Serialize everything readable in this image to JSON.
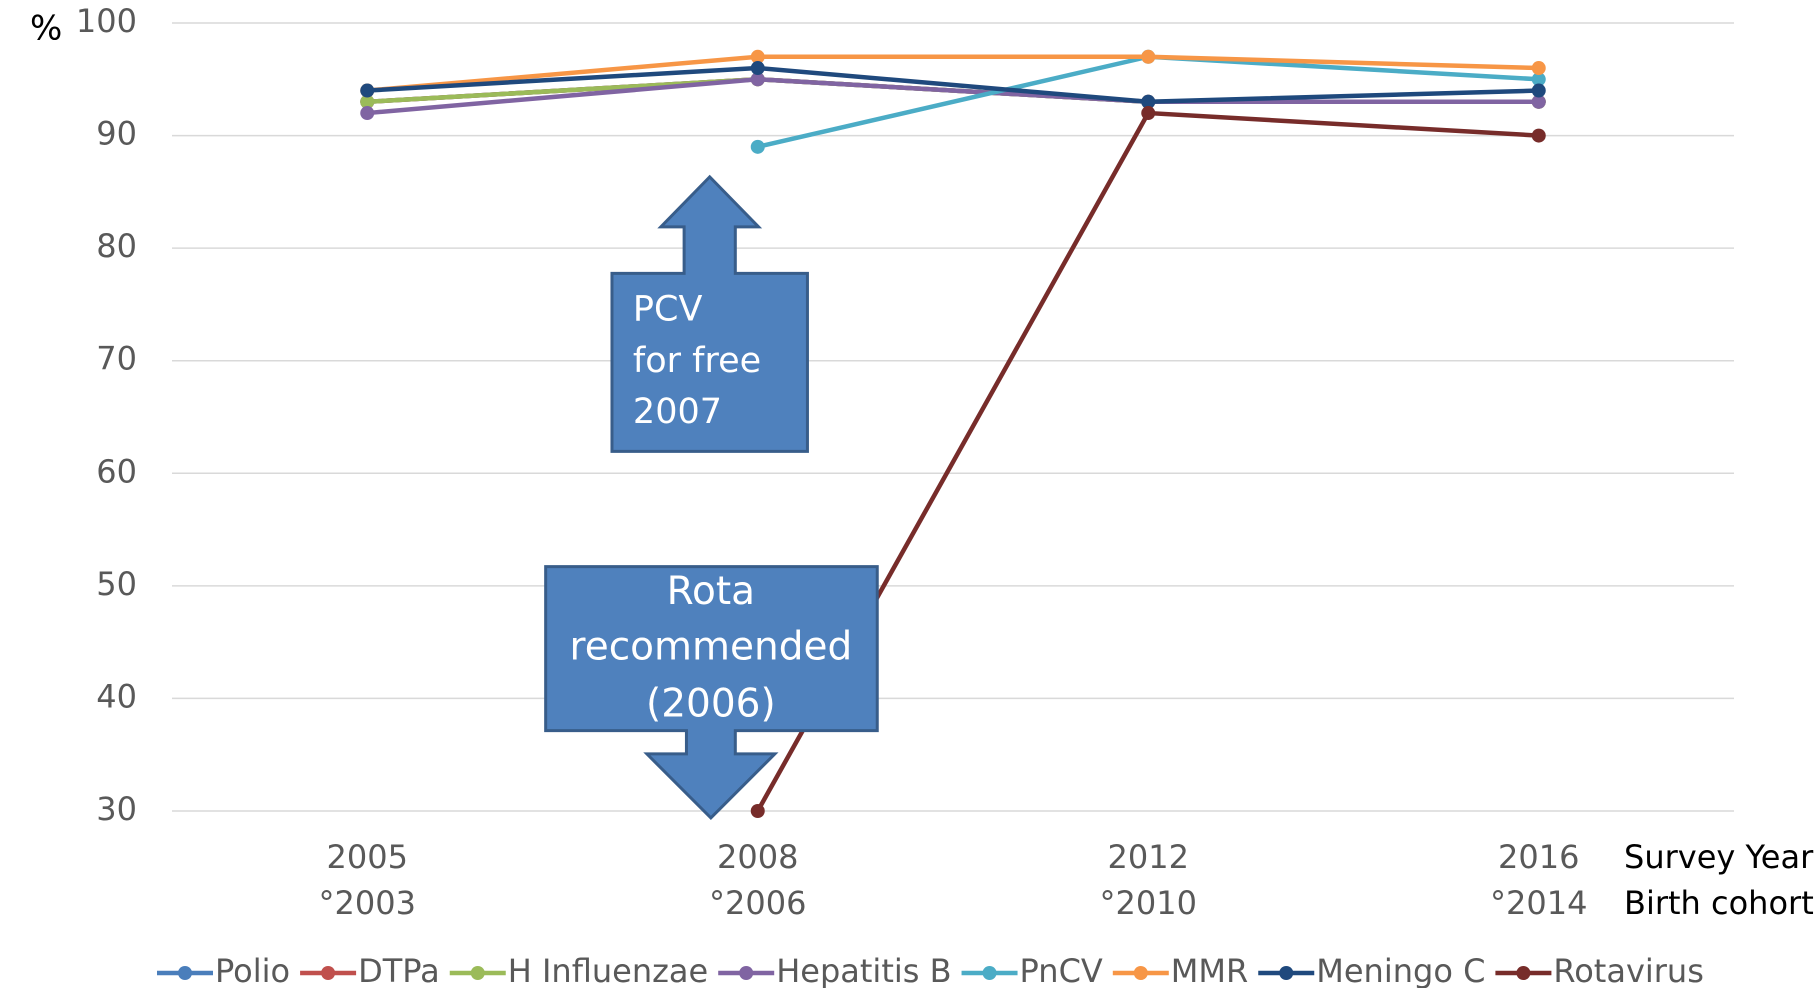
{
  "chart_data": {
    "type": "line",
    "y_label": "%",
    "x_label": "Survey Year",
    "x2_label": "Birth cohort",
    "categories": [
      "2005",
      "2008",
      "2012",
      "2016"
    ],
    "birth_cohorts": [
      "°2003",
      "°2006",
      "°2010",
      "°2014"
    ],
    "series": [
      {
        "name": "Polio",
        "color": "#4a7ebb",
        "values": [
          93,
          95,
          93,
          93
        ]
      },
      {
        "name": "DTPa",
        "color": "#c0504d",
        "values": [
          93,
          95,
          93,
          93
        ]
      },
      {
        "name": "H Influenzae",
        "color": "#9bbb59",
        "values": [
          93,
          95,
          93,
          93
        ]
      },
      {
        "name": "Hepatitis B",
        "color": "#8064a2",
        "values": [
          92,
          95,
          93,
          93
        ]
      },
      {
        "name": "PnCV",
        "color": "#4bacc6",
        "values": [
          null,
          89,
          97,
          95
        ]
      },
      {
        "name": "MMR",
        "color": "#f79646",
        "values": [
          94,
          97,
          97,
          96
        ]
      },
      {
        "name": "Meningo C",
        "color": "#1f497d",
        "values": [
          94,
          96,
          93,
          94
        ]
      },
      {
        "name": "Rotavirus",
        "color": "#772c2a",
        "values": [
          null,
          30,
          92,
          90
        ]
      }
    ],
    "ylim": [
      30,
      100
    ],
    "yticks": [
      30,
      40,
      50,
      60,
      70,
      80,
      90,
      100
    ],
    "grid": true,
    "legend": "bottom",
    "annotations": [
      {
        "lines": [
          "PCV",
          "for free",
          "2007"
        ],
        "direction": "up"
      },
      {
        "lines": [
          "Rota",
          "recommended",
          "(2006)"
        ],
        "direction": "down"
      }
    ]
  }
}
